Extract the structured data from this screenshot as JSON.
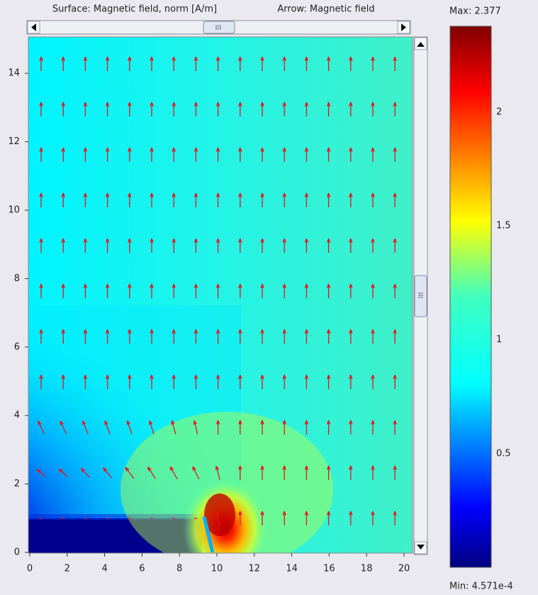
{
  "chart_data": {
    "type": "surface",
    "title": "Surface: Magnetic field, norm [A/m]",
    "arrow_title": "Arrow: Magnetic field",
    "xlim": [
      0,
      20
    ],
    "xticks": [
      0,
      2,
      4,
      6,
      8,
      10,
      12,
      14,
      16,
      18,
      20
    ],
    "ylim": [
      0,
      15
    ],
    "yticks": [
      0,
      2,
      4,
      6,
      8,
      10,
      12,
      14
    ],
    "colorbar": {
      "max_label": "Max: 2.377",
      "min_label": "Min: 4.571e-4",
      "lim": [
        0.0004571,
        2.377
      ],
      "ticks": [
        0.5,
        1,
        1.5,
        2
      ],
      "colormap": "jet"
    }
  }
}
